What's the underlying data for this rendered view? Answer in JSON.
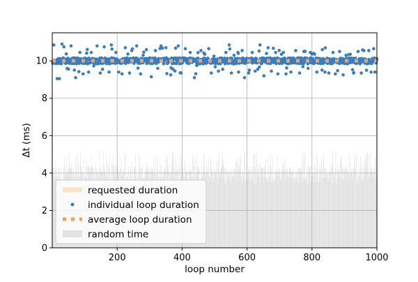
{
  "chart_data": {
    "type": "scatter",
    "xlabel": "loop number",
    "ylabel": "Δt (ms)",
    "xlim": [
      0,
      1000
    ],
    "ylim": [
      0,
      11.5
    ],
    "x_ticks": [
      "200",
      "400",
      "600",
      "800",
      "1000"
    ],
    "y_ticks": [
      "0",
      "2",
      "4",
      "6",
      "8",
      "10"
    ],
    "grid": true,
    "legend_position": "lower-left",
    "legend": [
      {
        "label": "requested duration",
        "style": "band"
      },
      {
        "label": "individual loop duration",
        "style": "dot"
      },
      {
        "label": "average loop duration",
        "style": "dotted-line"
      },
      {
        "label": "random time",
        "style": "patch"
      }
    ],
    "series": [
      {
        "name": "requested duration",
        "kind": "band",
        "y": 10,
        "color": "#fbe3c7"
      },
      {
        "name": "individual loop duration",
        "kind": "scatter",
        "color": "#3a7dbd",
        "n_points": 1000,
        "typical_value": 10.0,
        "spread": [
          9.0,
          11.0
        ],
        "outliers": [
          [
            5,
            10.85
          ],
          [
            15,
            9.05
          ],
          [
            22,
            9.05
          ],
          [
            30,
            10.9
          ],
          [
            36,
            10.75
          ],
          [
            58,
            10.8
          ],
          [
            72,
            9.1
          ],
          [
            85,
            10.45
          ],
          [
            95,
            9.3
          ],
          [
            112,
            9.4
          ],
          [
            120,
            10.45
          ],
          [
            138,
            10.8
          ],
          [
            148,
            9.35
          ],
          [
            155,
            9.55
          ],
          [
            160,
            10.75
          ],
          [
            175,
            9.4
          ],
          [
            182,
            10.85
          ],
          [
            196,
            10.45
          ],
          [
            205,
            9.4
          ],
          [
            215,
            9.3
          ],
          [
            225,
            10.7
          ],
          [
            238,
            9.35
          ],
          [
            245,
            10.55
          ],
          [
            260,
            10.8
          ],
          [
            272,
            9.3
          ],
          [
            280,
            10.3
          ],
          [
            290,
            10.6
          ],
          [
            305,
            9.15
          ],
          [
            318,
            10.55
          ],
          [
            325,
            9.6
          ],
          [
            335,
            10.8
          ],
          [
            350,
            10.7
          ],
          [
            365,
            9.25
          ],
          [
            372,
            9.55
          ],
          [
            388,
            10.8
          ],
          [
            397,
            9.35
          ],
          [
            410,
            10.65
          ],
          [
            425,
            10.45
          ],
          [
            438,
            9.1
          ],
          [
            445,
            9.75
          ],
          [
            458,
            10.55
          ],
          [
            470,
            10.35
          ],
          [
            482,
            10.65
          ],
          [
            490,
            9.35
          ],
          [
            498,
            10.25
          ],
          [
            512,
            9.45
          ],
          [
            525,
            9.55
          ],
          [
            535,
            10.45
          ],
          [
            545,
            10.85
          ],
          [
            552,
            9.35
          ],
          [
            560,
            10.3
          ],
          [
            572,
            10.45
          ],
          [
            585,
            10.55
          ],
          [
            592,
            9.1
          ],
          [
            605,
            9.35
          ],
          [
            616,
            10.45
          ],
          [
            625,
            9.45
          ],
          [
            633,
            9.55
          ],
          [
            640,
            10.85
          ],
          [
            652,
            9.2
          ],
          [
            665,
            10.7
          ],
          [
            675,
            9.45
          ],
          [
            688,
            10.45
          ],
          [
            695,
            9.3
          ],
          [
            706,
            10.35
          ],
          [
            712,
            10.45
          ],
          [
            720,
            9.3
          ],
          [
            735,
            9.4
          ],
          [
            750,
            10.55
          ],
          [
            762,
            9.35
          ],
          [
            775,
            10.5
          ],
          [
            788,
            9.6
          ],
          [
            795,
            10.45
          ],
          [
            805,
            10.4
          ],
          [
            815,
            9.4
          ],
          [
            832,
            10.6
          ],
          [
            840,
            9.4
          ],
          [
            852,
            9.35
          ],
          [
            865,
            10.45
          ],
          [
            872,
            9.3
          ],
          [
            885,
            10.5
          ],
          [
            896,
            9.25
          ],
          [
            905,
            10.3
          ],
          [
            918,
            10.35
          ],
          [
            928,
            9.35
          ],
          [
            942,
            10.5
          ],
          [
            952,
            9.35
          ],
          [
            960,
            10.55
          ],
          [
            968,
            9.5
          ],
          [
            975,
            10.55
          ],
          [
            982,
            9.4
          ],
          [
            990,
            10.65
          ],
          [
            994,
            9.4
          ]
        ]
      },
      {
        "name": "average loop duration",
        "kind": "line",
        "style": "dotted",
        "y": 10,
        "color": "#f4a25b"
      },
      {
        "name": "random time",
        "kind": "bars",
        "color": "#e3e3e3",
        "n_bars": 1000,
        "range": [
          0,
          5.2
        ]
      }
    ]
  }
}
